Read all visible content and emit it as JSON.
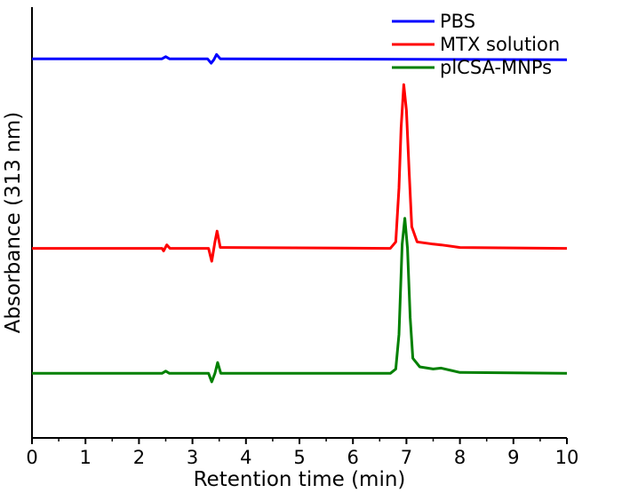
{
  "chart_data": {
    "type": "line",
    "xlabel": "Retention time (min)",
    "ylabel": "Absorbance (313 nm)",
    "xlim": [
      0,
      10
    ],
    "x_ticks": [
      "0",
      "1",
      "2",
      "3",
      "4",
      "5",
      "6",
      "7",
      "8",
      "9",
      "10"
    ],
    "y_ticks_labeled": false,
    "grid": false,
    "legend_position": "top-right",
    "series": [
      {
        "name": "PBS",
        "color": "#0000ff",
        "baseline": 8.8,
        "points": [
          [
            0,
            8.8
          ],
          [
            2.43,
            8.8
          ],
          [
            2.5,
            8.85
          ],
          [
            2.57,
            8.8
          ],
          [
            3.28,
            8.8
          ],
          [
            3.35,
            8.7
          ],
          [
            3.4,
            8.78
          ],
          [
            3.45,
            8.9
          ],
          [
            3.52,
            8.8
          ],
          [
            10,
            8.78
          ]
        ]
      },
      {
        "name": "MTX solution",
        "color": "#ff0000",
        "baseline": 4.4,
        "points": [
          [
            0,
            4.4
          ],
          [
            2.43,
            4.4
          ],
          [
            2.46,
            4.34
          ],
          [
            2.52,
            4.48
          ],
          [
            2.58,
            4.4
          ],
          [
            3.3,
            4.4
          ],
          [
            3.36,
            4.1
          ],
          [
            3.42,
            4.55
          ],
          [
            3.46,
            4.8
          ],
          [
            3.52,
            4.42
          ],
          [
            6.7,
            4.4
          ],
          [
            6.8,
            4.55
          ],
          [
            6.86,
            5.8
          ],
          [
            6.9,
            7.2
          ],
          [
            6.95,
            8.2
          ],
          [
            7.0,
            7.6
          ],
          [
            7.05,
            6.2
          ],
          [
            7.1,
            4.9
          ],
          [
            7.2,
            4.55
          ],
          [
            7.5,
            4.5
          ],
          [
            7.65,
            4.48
          ],
          [
            8.0,
            4.42
          ],
          [
            10,
            4.4
          ]
        ]
      },
      {
        "name": "plCSA-MNPs",
        "color": "#008000",
        "baseline": 1.5,
        "points": [
          [
            0,
            1.5
          ],
          [
            2.43,
            1.5
          ],
          [
            2.5,
            1.55
          ],
          [
            2.57,
            1.5
          ],
          [
            3.3,
            1.5
          ],
          [
            3.36,
            1.3
          ],
          [
            3.42,
            1.5
          ],
          [
            3.47,
            1.75
          ],
          [
            3.53,
            1.5
          ],
          [
            6.7,
            1.5
          ],
          [
            6.8,
            1.6
          ],
          [
            6.86,
            2.4
          ],
          [
            6.92,
            4.5
          ],
          [
            6.97,
            5.1
          ],
          [
            7.02,
            4.4
          ],
          [
            7.07,
            2.8
          ],
          [
            7.12,
            1.85
          ],
          [
            7.25,
            1.65
          ],
          [
            7.5,
            1.6
          ],
          [
            7.65,
            1.62
          ],
          [
            8.0,
            1.52
          ],
          [
            10,
            1.5
          ]
        ]
      }
    ]
  }
}
